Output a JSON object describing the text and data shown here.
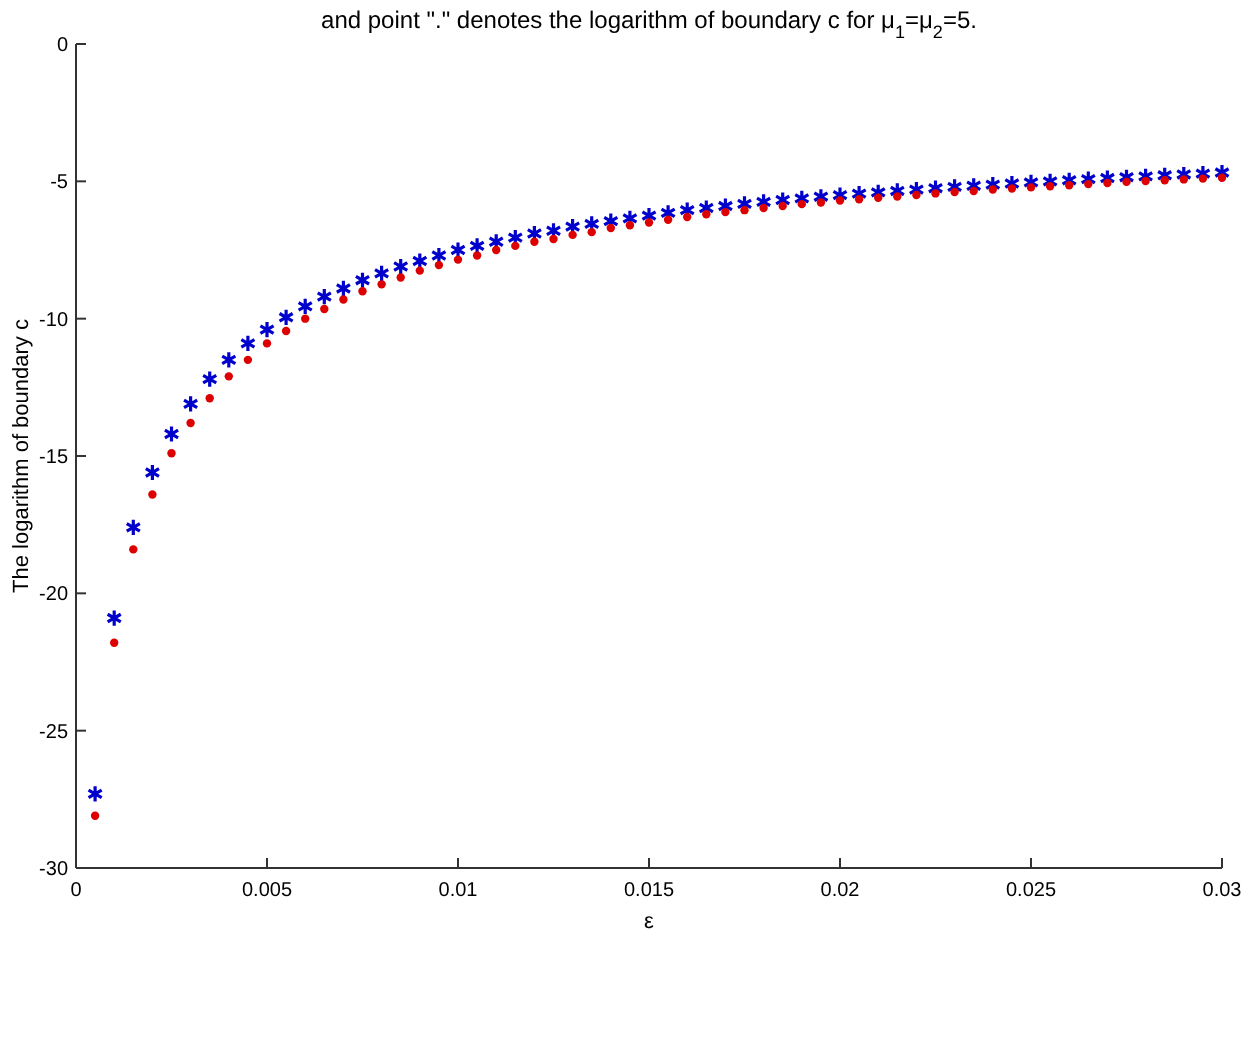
{
  "chart_data": {
    "type": "scatter",
    "title": "and point \".\" denotes the logarithm of boundary c for μ$_{1}$=μ$_{2}$=5.",
    "xlabel": "ε",
    "ylabel": "The logarithm of boundary c",
    "x": [
      0.0005,
      0.001,
      0.0015,
      0.002,
      0.0025,
      0.003,
      0.0035,
      0.004,
      0.0045,
      0.005,
      0.0055,
      0.006,
      0.0065,
      0.007,
      0.0075,
      0.008,
      0.0085,
      0.009,
      0.0095,
      0.01,
      0.0105,
      0.011,
      0.0115,
      0.012,
      0.0125,
      0.013,
      0.0135,
      0.014,
      0.0145,
      0.015,
      0.0155,
      0.016,
      0.0165,
      0.017,
      0.0175,
      0.018,
      0.0185,
      0.019,
      0.0195,
      0.02,
      0.0205,
      0.021,
      0.0215,
      0.022,
      0.0225,
      0.023,
      0.0235,
      0.024,
      0.0245,
      0.025,
      0.0255,
      0.026,
      0.0265,
      0.027,
      0.0275,
      0.028,
      0.0285,
      0.029,
      0.0295,
      0.03
    ],
    "series": [
      {
        "color": "#0000cc",
        "marker": "cross",
        "values": [
          -27.3,
          -20.9,
          -17.6,
          -15.6,
          -14.2,
          -13.1,
          -12.2,
          -11.5,
          -10.9,
          -10.4,
          -9.95,
          -9.55,
          -9.2,
          -8.9,
          -8.6,
          -8.35,
          -8.1,
          -7.9,
          -7.7,
          -7.5,
          -7.35,
          -7.2,
          -7.05,
          -6.9,
          -6.8,
          -6.65,
          -6.55,
          -6.45,
          -6.35,
          -6.25,
          -6.15,
          -6.05,
          -5.97,
          -5.9,
          -5.82,
          -5.75,
          -5.68,
          -5.62,
          -5.56,
          -5.5,
          -5.45,
          -5.4,
          -5.35,
          -5.3,
          -5.25,
          -5.2,
          -5.16,
          -5.12,
          -5.08,
          -5.04,
          -5.0,
          -4.96,
          -4.92,
          -4.88,
          -4.85,
          -4.82,
          -4.78,
          -4.75,
          -4.72,
          -4.68
        ]
      },
      {
        "color": "#dd0000",
        "marker": "circle",
        "values": [
          -28.1,
          -21.8,
          -18.4,
          -16.4,
          -14.9,
          -13.8,
          -12.9,
          -12.1,
          -11.5,
          -10.9,
          -10.45,
          -10.0,
          -9.65,
          -9.3,
          -9.0,
          -8.75,
          -8.5,
          -8.25,
          -8.05,
          -7.85,
          -7.7,
          -7.5,
          -7.35,
          -7.2,
          -7.1,
          -6.95,
          -6.85,
          -6.7,
          -6.6,
          -6.5,
          -6.4,
          -6.3,
          -6.2,
          -6.12,
          -6.05,
          -5.97,
          -5.9,
          -5.83,
          -5.77,
          -5.7,
          -5.65,
          -5.6,
          -5.55,
          -5.5,
          -5.44,
          -5.39,
          -5.35,
          -5.3,
          -5.26,
          -5.22,
          -5.18,
          -5.14,
          -5.1,
          -5.06,
          -5.02,
          -4.99,
          -4.96,
          -4.93,
          -4.9,
          -4.87
        ]
      }
    ],
    "xlim": [
      0,
      0.03
    ],
    "xticks": [
      0,
      0.005,
      0.01,
      0.015,
      0.02,
      0.025,
      0.03
    ],
    "ylim": [
      -30,
      0
    ],
    "yticks": [
      -30,
      -25,
      -20,
      -15,
      -10,
      -5,
      0
    ],
    "grid": false
  }
}
